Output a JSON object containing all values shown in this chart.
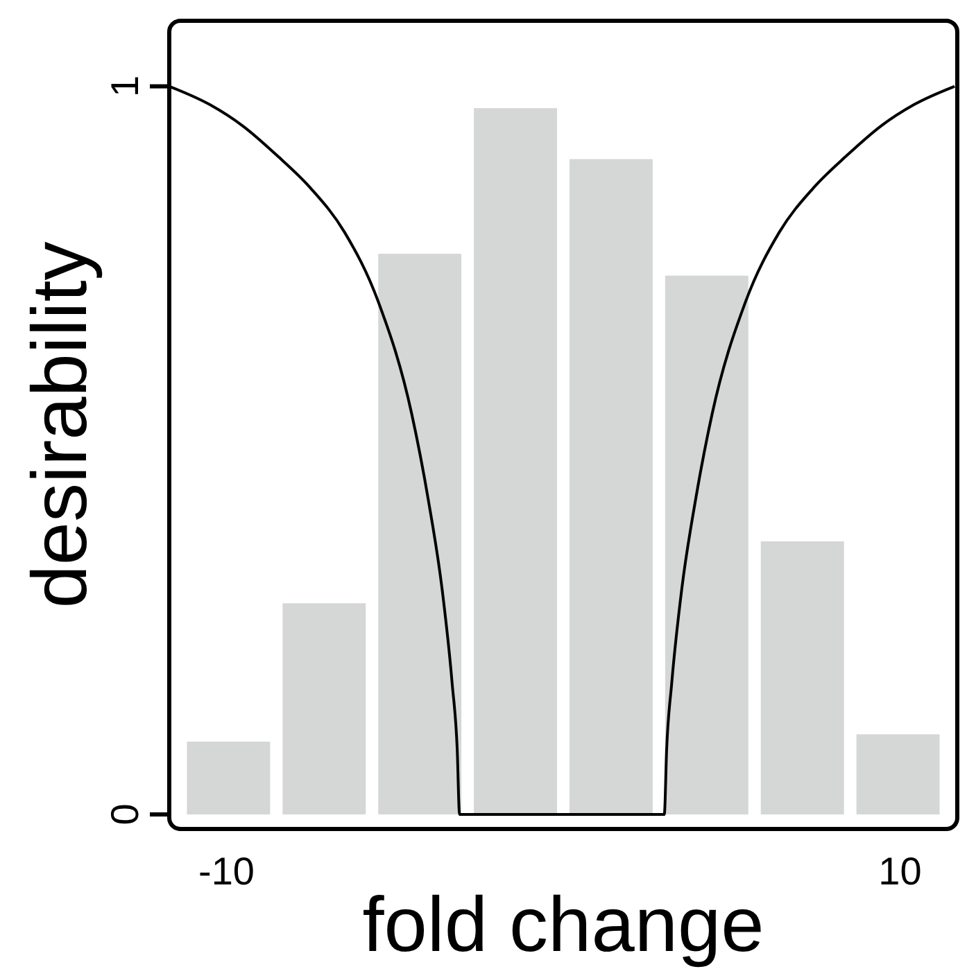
{
  "chart_data": {
    "type": "histogram",
    "xlabel": "fold change",
    "ylabel": "desirability",
    "xlim": [
      -11.7,
      11.7
    ],
    "ylim": [
      -0.02,
      1.09
    ],
    "xticks": [
      -10,
      10
    ],
    "yticks": [
      0,
      1
    ],
    "grid": false,
    "series": [
      {
        "color": "#d5d6d6",
        "bins": [
          -11.36,
          -8.52,
          -5.68,
          -2.84,
          0,
          2.84,
          5.68,
          8.52,
          11.36
        ],
        "values": [
          0.1,
          0.29,
          0.77,
          0.97,
          0.9,
          0.74,
          0.375,
          0.11
        ]
      },
      {
        "type": "line",
        "color": "#000000",
        "x": [
          -11.7,
          -10.5,
          -9.5,
          -8.5,
          -7.5,
          -6.5,
          -5.5,
          -4.5,
          -4,
          -3.6,
          -3.3,
          -3.15,
          -3.08,
          3.0,
          3.07,
          3.22,
          3.52,
          3.92,
          4.42,
          5.42,
          6.42,
          7.42,
          8.42,
          9.42,
          10.42,
          11.62
        ],
        "values": [
          1,
          0.975,
          0.945,
          0.905,
          0.86,
          0.8,
          0.705,
          0.55,
          0.43,
          0.31,
          0.18,
          0.09,
          0,
          0,
          0.09,
          0.18,
          0.31,
          0.43,
          0.55,
          0.705,
          0.8,
          0.86,
          0.905,
          0.945,
          0.975,
          1
        ]
      }
    ]
  }
}
